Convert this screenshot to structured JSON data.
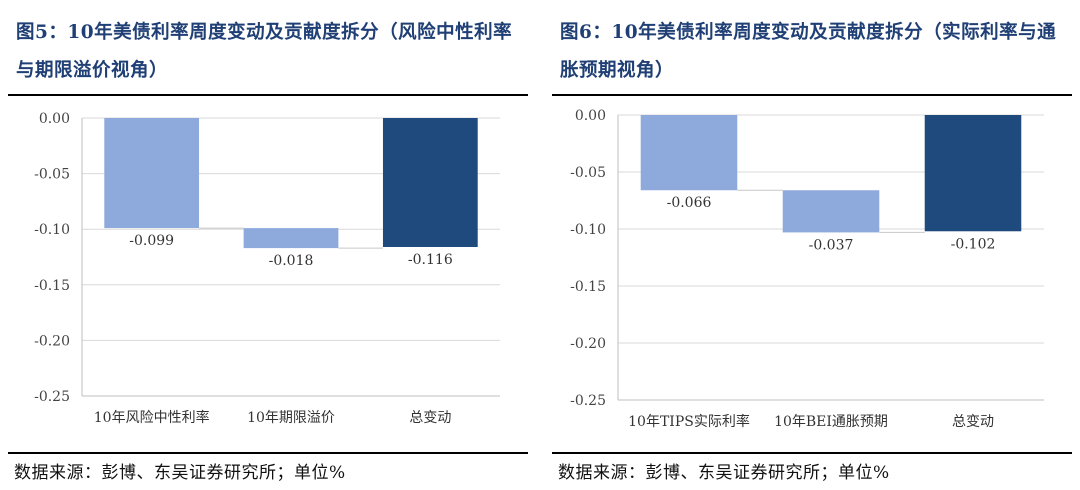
{
  "charts": [
    {
      "title": "图5：10年美债利率周度变动及贡献度拆分（风险中性利率与期限溢价视角）",
      "source": "数据来源：彭博、东吴证券研究所；单位%",
      "chart_data": {
        "type": "bar",
        "subtype": "waterfall",
        "categories": [
          "10年风险中性利率",
          "10年期限溢价",
          "总变动"
        ],
        "values": [
          -0.099,
          -0.018,
          -0.116
        ],
        "data_labels": [
          "-0.099",
          "-0.018",
          "-0.116"
        ],
        "ylim": [
          -0.25,
          0.0
        ],
        "yticks": [
          "0.00",
          "-0.05",
          "-0.10",
          "-0.15",
          "-0.20",
          "-0.25"
        ],
        "ytick_values": [
          0.0,
          -0.05,
          -0.1,
          -0.15,
          -0.2,
          -0.25
        ],
        "grid": true,
        "colors": [
          "#8eaadc",
          "#8eaadc",
          "#1f4a7d"
        ]
      }
    },
    {
      "title": "图6：10年美债利率周度变动及贡献度拆分（实际利率与通胀预期视角）",
      "source": "数据来源：彭博、东吴证券研究所；单位%",
      "chart_data": {
        "type": "bar",
        "subtype": "waterfall",
        "categories": [
          "10年TIPS实际利率",
          "10年BEI通胀预期",
          "总变动"
        ],
        "values": [
          -0.066,
          -0.037,
          -0.102
        ],
        "data_labels": [
          "-0.066",
          "-0.037",
          "-0.102"
        ],
        "ylim": [
          -0.25,
          0.0
        ],
        "yticks": [
          "0.00",
          "-0.05",
          "-0.10",
          "-0.15",
          "-0.20",
          "-0.25"
        ],
        "ytick_values": [
          0.0,
          -0.05,
          -0.1,
          -0.15,
          -0.2,
          -0.25
        ],
        "grid": true,
        "colors": [
          "#8eaadc",
          "#8eaadc",
          "#1f4a7d"
        ]
      }
    }
  ]
}
